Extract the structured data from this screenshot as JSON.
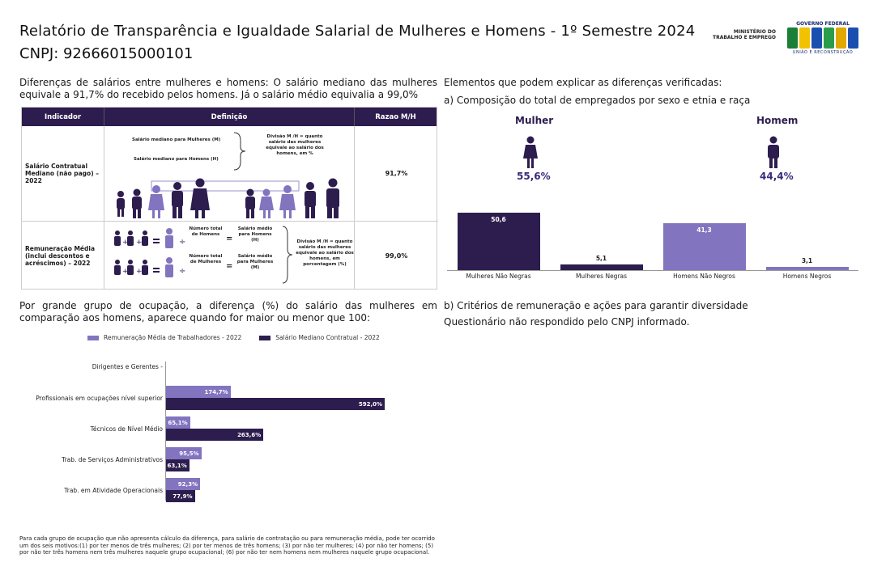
{
  "header": {
    "title": "Relatório de Transparência e Igualdade Salarial de Mulheres e Homens - 1º Semestre 2024",
    "cnpj": "CNPJ: 92666015000101",
    "ministry": "MINISTÉRIO DO TRABALHO E EMPREGO",
    "gov_top": "GOVERNO FEDERAL",
    "gov_bottom": "UNIÃO E RECONSTRUÇÃO",
    "brand_colors": [
      "#1a7f37",
      "#f2c200",
      "#1a4fb0",
      "#2a9d4a",
      "#e0a800",
      "#1a4fb0"
    ]
  },
  "intro": "Diferenças de salários entre mulheres e homens: O salário mediano das mulheres equivale a 91,7% do recebido pelos homens. Já o salário médio equivalia a 99,0%",
  "table": {
    "headers": [
      "Indicador",
      "Definição",
      "Razao M/H"
    ],
    "rows": [
      {
        "indicator": "Salário Contratual Mediano (não pago) – 2022",
        "def_women": "Salário mediano para Mulheres (M)",
        "def_men": "Salário mediano para Homens (H)",
        "def_note": "Divisão M /H = quanto salário das mulheres equivale ao salário dos homens, em %",
        "ratio": "91,7%"
      },
      {
        "indicator": "Remuneração Média (inclui descontos e acréscimos) – 2022",
        "total_women": "Número total de Homens",
        "avg_women": "Salário médio para Homens (H)",
        "total_men": "Número total de Mulheres",
        "avg_men": "Salário médio para Mulheres (M)",
        "def_note": "Divisão M /H = quanto salário das mulheres equivale ao salário dos homens, em porcentagem (%)",
        "ratio": "99,0%"
      }
    ]
  },
  "composition": {
    "heading": "Elementos que podem explicar as diferenças verificadas:",
    "subheading": "a) Composição do total de empregados por sexo e etnia e raça",
    "women_label": "Mulher",
    "women_pct": "55,6%",
    "men_label": "Homem",
    "men_pct": "44,4%"
  },
  "chart_data": [
    {
      "type": "bar",
      "categories": [
        "Mulheres Não Negras",
        "Mulheres Negras",
        "Homens Não Negros",
        "Homens Negros"
      ],
      "values": [
        50.6,
        5.1,
        41.3,
        3.1
      ],
      "value_labels": [
        "50,6",
        "5,1",
        "41,3",
        "3,1"
      ],
      "colors": [
        "#2d1d4e",
        "#2d1d4e",
        "#8274bf",
        "#8274bf"
      ],
      "ylim": [
        0,
        55
      ]
    },
    {
      "type": "bar",
      "orientation": "horizontal",
      "categories": [
        "Dirigentes e Gerentes",
        "Profissionais em ocupações nível superior",
        "Técnicos de Nível Médio",
        "Trab. de Serviços Administrativos",
        "Trab. em Atividade Operacionais"
      ],
      "series": [
        {
          "name": "Remuneração Média de Trabalhadores - 2022",
          "color": "#8274bf",
          "values": [
            null,
            174.7,
            65.1,
            95.5,
            92.3
          ],
          "labels": [
            "",
            "174,7%",
            "65,1%",
            "95,5%",
            "92,3%"
          ]
        },
        {
          "name": "Salário Mediano Contratual - 2022",
          "color": "#2d1d4e",
          "values": [
            null,
            592.0,
            263.6,
            63.1,
            77.9
          ],
          "labels": [
            "",
            "592,0%",
            "263,6%",
            "63,1%",
            "77,9%"
          ]
        }
      ],
      "xlim": [
        0,
        600
      ]
    }
  ],
  "occupation": {
    "text": "Por grande grupo de ocupação, a diferença (%) do salário das mulheres em comparação aos homens, aparece quando for maior ou menor que 100:"
  },
  "criteria": {
    "heading": "b) Critérios de remuneração e ações para garantir diversidade",
    "text": "Questionário não respondido pelo CNPJ informado."
  },
  "footnote": "Para cada grupo de ocupação que não apresenta cálculo da diferença, para salário de contratação ou para remuneração média, pode ter ocorrido um dos seis motivos:(1) por ter menos de três mulheres; (2) por ter menos de três homens; (3) por não ter mulheres; (4) por não ter homens; (5) por não ter três homens nem três mulheres naquele grupo ocupacional; (6) por não ter nem homens nem mulheres naquele grupo ocupacional."
}
